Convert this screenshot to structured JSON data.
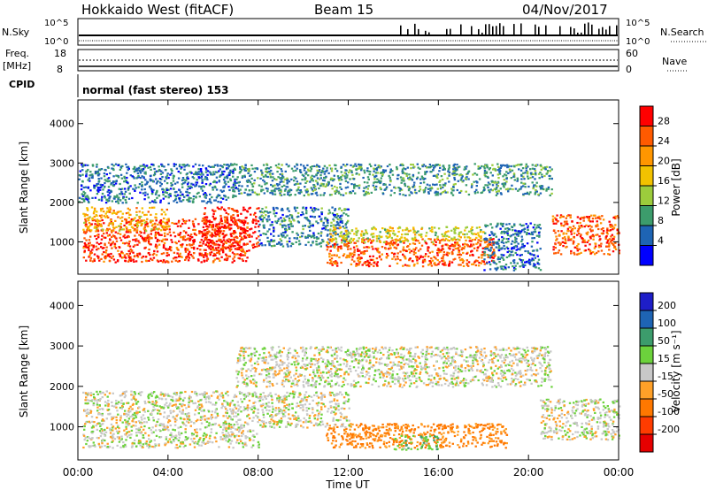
{
  "header": {
    "title": "Hokkaido West (fitACF)",
    "beam": "Beam 15",
    "date": "04/Nov/2017"
  },
  "top_panels": {
    "nsky_label": "N.Sky",
    "nsearch_label": "N.Search",
    "scale_top": "10^5",
    "scale_bottom": "10^0",
    "freq_label_1": "Freq.",
    "freq_label_2": "[MHz]",
    "freq_top": "18",
    "freq_bottom": "8",
    "nave_label": "Nave",
    "nave_top": "60",
    "nave_bottom": "0",
    "cpid_label": "CPID",
    "cpid_value": "normal (fast stereo) 153"
  },
  "power_colorbar": {
    "label": "Power [dB]",
    "ticks": [
      "28",
      "24",
      "20",
      "16",
      "12",
      "8",
      "4"
    ],
    "colors": [
      "#ff0000",
      "#ff5a00",
      "#ff9600",
      "#f2c200",
      "#9ccc3c",
      "#3c9c6c",
      "#1e64b4",
      "#0000ff"
    ]
  },
  "velocity_colorbar": {
    "label": "Velocity [m s⁻¹]",
    "ticks": [
      "200",
      "100",
      "50",
      "15",
      "-15",
      "-50",
      "-100",
      "-200"
    ],
    "colors": [
      "#1e1ec8",
      "#1e64b4",
      "#3c9c6c",
      "#6cd23c",
      "#c8c8c8",
      "#ffa028",
      "#ff7800",
      "#ff3c00",
      "#e60000"
    ]
  },
  "chart_data": [
    {
      "type": "heatmap",
      "title": "",
      "xlabel": "",
      "ylabel": "Slant Range [km]",
      "x_ticks": [
        "00:00",
        "04:00",
        "08:00",
        "12:00",
        "16:00",
        "20:00",
        "00:00"
      ],
      "xlim_hours": [
        0,
        24
      ],
      "y_ticks": [
        1000,
        2000,
        3000,
        4000
      ],
      "ylim": [
        180,
        4600
      ],
      "colorbar": "Power [dB]",
      "echo_regions": [
        {
          "t0": 0.2,
          "t1": 7.5,
          "r0": 500,
          "r1": 1600,
          "value": 26
        },
        {
          "t0": 0.2,
          "t1": 4.0,
          "r0": 1300,
          "r1": 1900,
          "value": 18
        },
        {
          "t0": 5.5,
          "t1": 8.0,
          "r0": 800,
          "r1": 1900,
          "value": 28
        },
        {
          "t0": 8.0,
          "t1": 12.0,
          "r0": 900,
          "r1": 1900,
          "value": 6
        },
        {
          "t0": 11.0,
          "t1": 18.5,
          "r0": 400,
          "r1": 1100,
          "value": 24
        },
        {
          "t0": 11.0,
          "t1": 18.0,
          "r0": 1000,
          "r1": 1400,
          "value": 14
        },
        {
          "t0": 18.0,
          "t1": 20.5,
          "r0": 300,
          "r1": 1500,
          "value": 5
        },
        {
          "t0": 21.0,
          "t1": 24.0,
          "r0": 700,
          "r1": 1700,
          "value": 24
        },
        {
          "t0": 7.0,
          "t1": 21.0,
          "r0": 2200,
          "r1": 3000,
          "value": 7
        },
        {
          "t0": 0.0,
          "t1": 7.0,
          "r0": 2000,
          "r1": 3000,
          "value": 5
        }
      ]
    },
    {
      "type": "heatmap",
      "title": "",
      "xlabel": "Time UT",
      "ylabel": "Slant Range [km]",
      "x_ticks": [
        "00:00",
        "04:00",
        "08:00",
        "12:00",
        "16:00",
        "20:00",
        "00:00"
      ],
      "xlim_hours": [
        0,
        24
      ],
      "y_ticks": [
        1000,
        2000,
        3000,
        4000
      ],
      "ylim": [
        180,
        4600
      ],
      "colorbar": "Velocity [m s⁻¹]",
      "echo_regions": [
        {
          "t0": 0.2,
          "t1": 8.0,
          "r0": 500,
          "r1": 1900,
          "value": 0
        },
        {
          "t0": 11.0,
          "t1": 19.0,
          "r0": 500,
          "r1": 1100,
          "value": -60
        },
        {
          "t0": 14.0,
          "t1": 16.0,
          "r0": 450,
          "r1": 800,
          "value": 40
        },
        {
          "t0": 7.0,
          "t1": 21.0,
          "r0": 2000,
          "r1": 3000,
          "value": 0
        },
        {
          "t0": 20.5,
          "t1": 24.0,
          "r0": 700,
          "r1": 1700,
          "value": 0
        },
        {
          "t0": 8.0,
          "t1": 12.0,
          "r0": 1000,
          "r1": 1900,
          "value": 0
        }
      ]
    }
  ]
}
